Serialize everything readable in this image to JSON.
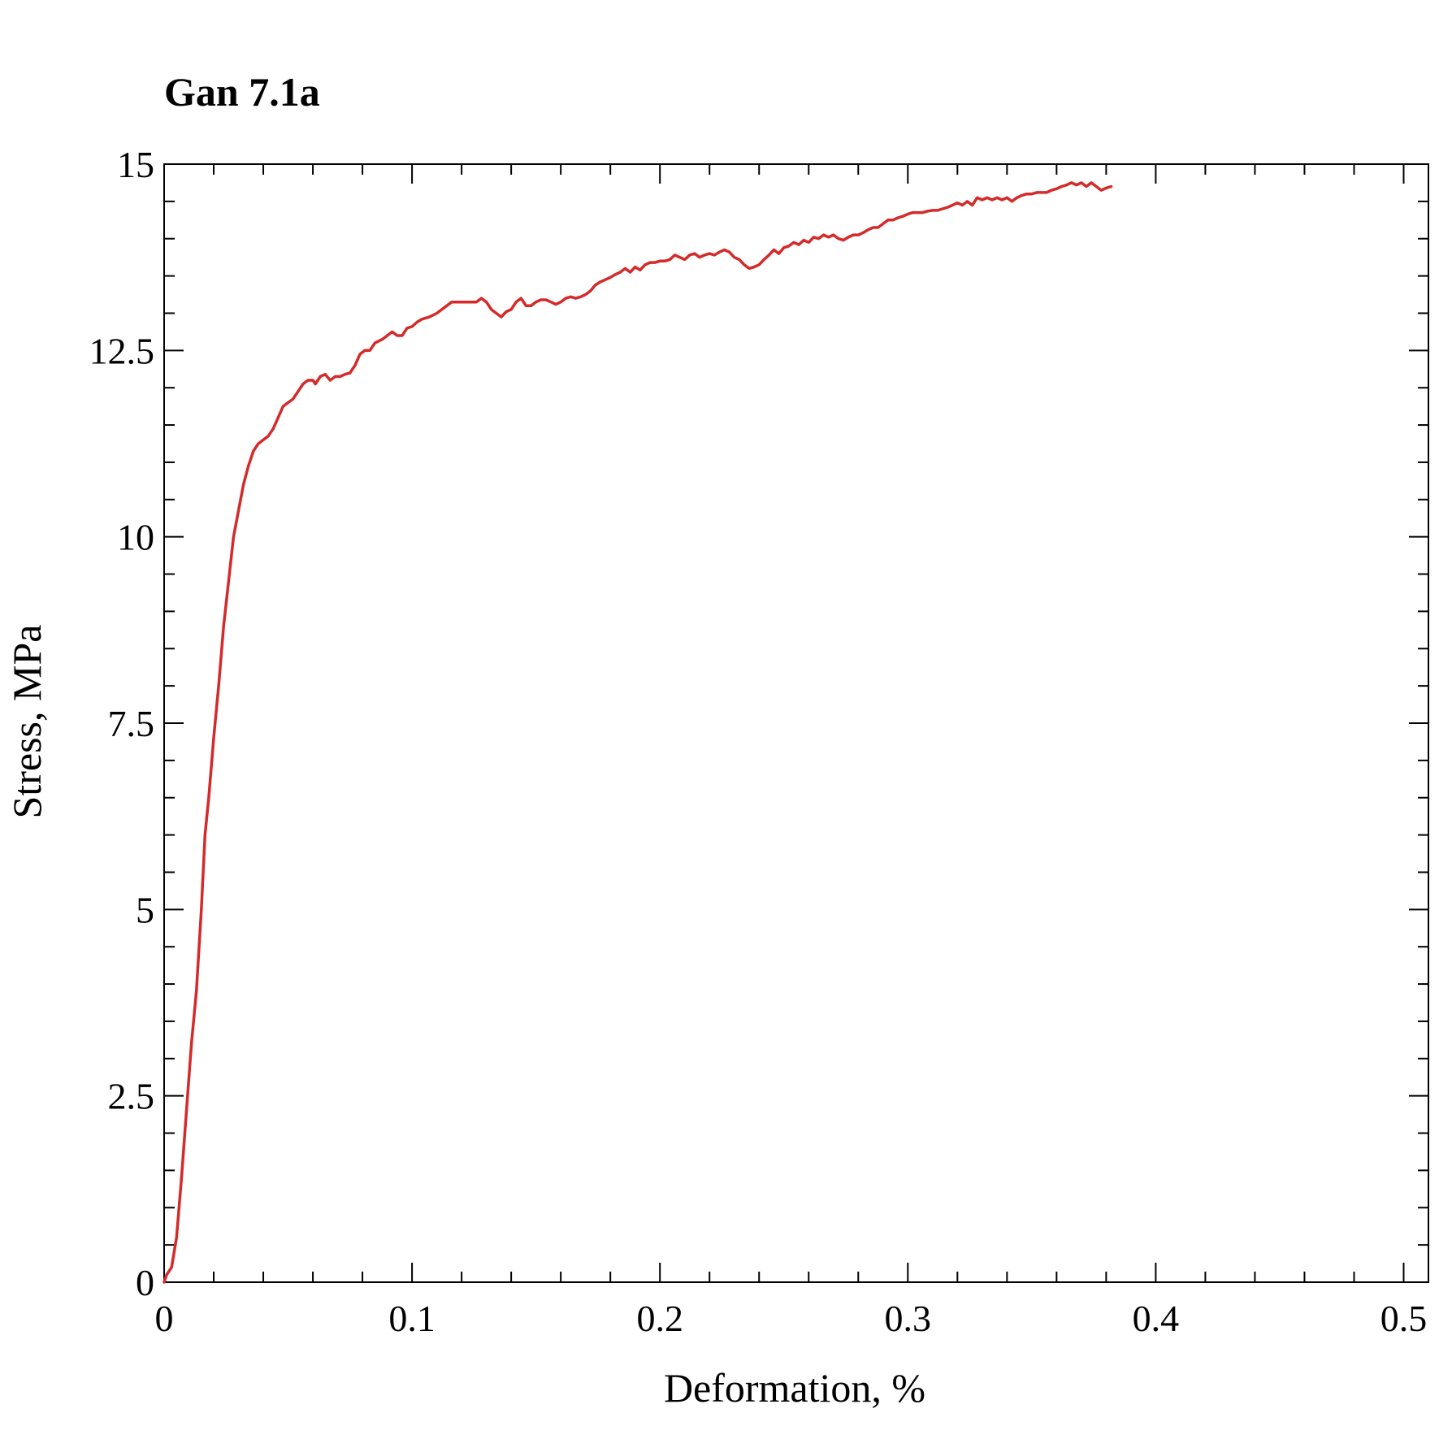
{
  "chart_data": {
    "type": "line",
    "title": "Gan 7.1a",
    "xlabel": "Deformation, %",
    "ylabel": "Stress, MPa",
    "xlim": [
      0,
      0.51
    ],
    "ylim": [
      0,
      15
    ],
    "x_ticks": [
      0,
      0.1,
      0.2,
      0.3,
      0.4,
      0.5
    ],
    "x_tick_labels": [
      "0",
      "0.1",
      "0.2",
      "0.3",
      "0.4",
      "0.5"
    ],
    "y_ticks": [
      0,
      2.5,
      5,
      7.5,
      10,
      12.5,
      15
    ],
    "y_tick_labels": [
      "0",
      "2.5",
      "5",
      "7.5",
      "10",
      "12.5",
      "15"
    ],
    "x_minor_step": 0.02,
    "y_minor_step": 0.5,
    "grid": false,
    "series": [
      {
        "name": "Gan 7.1a",
        "color": "#d42a2a",
        "points": [
          [
            0,
            0
          ],
          [
            0.001,
            0.1
          ],
          [
            0.003,
            0.2
          ],
          [
            0.005,
            0.6
          ],
          [
            0.007,
            1.4
          ],
          [
            0.009,
            2.3
          ],
          [
            0.011,
            3.2
          ],
          [
            0.013,
            3.9
          ],
          [
            0.015,
            5.0
          ],
          [
            0.0165,
            6.0
          ],
          [
            0.018,
            6.5
          ],
          [
            0.02,
            7.3
          ],
          [
            0.022,
            8.0
          ],
          [
            0.024,
            8.8
          ],
          [
            0.026,
            9.4
          ],
          [
            0.028,
            10.0
          ],
          [
            0.03,
            10.35
          ],
          [
            0.032,
            10.7
          ],
          [
            0.034,
            10.95
          ],
          [
            0.036,
            11.15
          ],
          [
            0.038,
            11.25
          ],
          [
            0.04,
            11.3
          ],
          [
            0.042,
            11.35
          ],
          [
            0.044,
            11.45
          ],
          [
            0.046,
            11.6
          ],
          [
            0.048,
            11.75
          ],
          [
            0.05,
            11.8
          ],
          [
            0.052,
            11.85
          ],
          [
            0.054,
            11.95
          ],
          [
            0.056,
            12.05
          ],
          [
            0.058,
            12.1
          ],
          [
            0.06,
            12.1
          ],
          [
            0.061,
            12.05
          ],
          [
            0.063,
            12.15
          ],
          [
            0.065,
            12.18
          ],
          [
            0.067,
            12.1
          ],
          [
            0.069,
            12.15
          ],
          [
            0.071,
            12.15
          ],
          [
            0.073,
            12.18
          ],
          [
            0.075,
            12.2
          ],
          [
            0.077,
            12.3
          ],
          [
            0.079,
            12.45
          ],
          [
            0.081,
            12.5
          ],
          [
            0.083,
            12.5
          ],
          [
            0.085,
            12.6
          ],
          [
            0.088,
            12.65
          ],
          [
            0.09,
            12.7
          ],
          [
            0.092,
            12.75
          ],
          [
            0.094,
            12.7
          ],
          [
            0.096,
            12.7
          ],
          [
            0.098,
            12.8
          ],
          [
            0.1,
            12.82
          ],
          [
            0.102,
            12.88
          ],
          [
            0.104,
            12.92
          ],
          [
            0.107,
            12.95
          ],
          [
            0.11,
            13.0
          ],
          [
            0.112,
            13.05
          ],
          [
            0.114,
            13.1
          ],
          [
            0.116,
            13.15
          ],
          [
            0.118,
            13.15
          ],
          [
            0.12,
            13.15
          ],
          [
            0.123,
            13.15
          ],
          [
            0.126,
            13.15
          ],
          [
            0.128,
            13.2
          ],
          [
            0.13,
            13.15
          ],
          [
            0.132,
            13.05
          ],
          [
            0.134,
            13.0
          ],
          [
            0.136,
            12.95
          ],
          [
            0.138,
            13.02
          ],
          [
            0.14,
            13.05
          ],
          [
            0.142,
            13.15
          ],
          [
            0.144,
            13.2
          ],
          [
            0.146,
            13.1
          ],
          [
            0.148,
            13.1
          ],
          [
            0.15,
            13.15
          ],
          [
            0.152,
            13.18
          ],
          [
            0.154,
            13.18
          ],
          [
            0.156,
            13.15
          ],
          [
            0.158,
            13.12
          ],
          [
            0.16,
            13.15
          ],
          [
            0.162,
            13.2
          ],
          [
            0.164,
            13.22
          ],
          [
            0.166,
            13.2
          ],
          [
            0.168,
            13.22
          ],
          [
            0.17,
            13.25
          ],
          [
            0.172,
            13.3
          ],
          [
            0.174,
            13.38
          ],
          [
            0.176,
            13.42
          ],
          [
            0.178,
            13.45
          ],
          [
            0.18,
            13.48
          ],
          [
            0.182,
            13.52
          ],
          [
            0.184,
            13.55
          ],
          [
            0.186,
            13.6
          ],
          [
            0.188,
            13.55
          ],
          [
            0.19,
            13.62
          ],
          [
            0.192,
            13.58
          ],
          [
            0.194,
            13.65
          ],
          [
            0.196,
            13.68
          ],
          [
            0.198,
            13.68
          ],
          [
            0.2,
            13.7
          ],
          [
            0.202,
            13.7
          ],
          [
            0.204,
            13.72
          ],
          [
            0.206,
            13.78
          ],
          [
            0.208,
            13.75
          ],
          [
            0.21,
            13.72
          ],
          [
            0.212,
            13.78
          ],
          [
            0.214,
            13.8
          ],
          [
            0.216,
            13.75
          ],
          [
            0.218,
            13.78
          ],
          [
            0.22,
            13.8
          ],
          [
            0.222,
            13.78
          ],
          [
            0.224,
            13.82
          ],
          [
            0.226,
            13.85
          ],
          [
            0.228,
            13.82
          ],
          [
            0.23,
            13.75
          ],
          [
            0.232,
            13.72
          ],
          [
            0.234,
            13.65
          ],
          [
            0.236,
            13.6
          ],
          [
            0.238,
            13.62
          ],
          [
            0.24,
            13.65
          ],
          [
            0.242,
            13.72
          ],
          [
            0.244,
            13.78
          ],
          [
            0.246,
            13.85
          ],
          [
            0.248,
            13.8
          ],
          [
            0.25,
            13.88
          ],
          [
            0.252,
            13.9
          ],
          [
            0.254,
            13.95
          ],
          [
            0.256,
            13.92
          ],
          [
            0.258,
            13.98
          ],
          [
            0.26,
            13.95
          ],
          [
            0.262,
            14.02
          ],
          [
            0.264,
            14.0
          ],
          [
            0.266,
            14.05
          ],
          [
            0.268,
            14.02
          ],
          [
            0.27,
            14.05
          ],
          [
            0.272,
            14.0
          ],
          [
            0.274,
            13.98
          ],
          [
            0.276,
            14.02
          ],
          [
            0.278,
            14.05
          ],
          [
            0.28,
            14.05
          ],
          [
            0.282,
            14.08
          ],
          [
            0.284,
            14.12
          ],
          [
            0.286,
            14.15
          ],
          [
            0.288,
            14.15
          ],
          [
            0.29,
            14.2
          ],
          [
            0.292,
            14.25
          ],
          [
            0.294,
            14.25
          ],
          [
            0.296,
            14.28
          ],
          [
            0.298,
            14.3
          ],
          [
            0.3,
            14.33
          ],
          [
            0.302,
            14.35
          ],
          [
            0.304,
            14.35
          ],
          [
            0.306,
            14.35
          ],
          [
            0.308,
            14.37
          ],
          [
            0.31,
            14.38
          ],
          [
            0.312,
            14.38
          ],
          [
            0.314,
            14.4
          ],
          [
            0.316,
            14.42
          ],
          [
            0.318,
            14.45
          ],
          [
            0.32,
            14.48
          ],
          [
            0.322,
            14.45
          ],
          [
            0.324,
            14.5
          ],
          [
            0.326,
            14.45
          ],
          [
            0.328,
            14.55
          ],
          [
            0.33,
            14.52
          ],
          [
            0.332,
            14.55
          ],
          [
            0.334,
            14.52
          ],
          [
            0.336,
            14.55
          ],
          [
            0.338,
            14.52
          ],
          [
            0.34,
            14.55
          ],
          [
            0.342,
            14.5
          ],
          [
            0.344,
            14.55
          ],
          [
            0.346,
            14.58
          ],
          [
            0.348,
            14.6
          ],
          [
            0.35,
            14.6
          ],
          [
            0.352,
            14.62
          ],
          [
            0.354,
            14.62
          ],
          [
            0.356,
            14.62
          ],
          [
            0.358,
            14.65
          ],
          [
            0.36,
            14.67
          ],
          [
            0.362,
            14.7
          ],
          [
            0.364,
            14.72
          ],
          [
            0.366,
            14.75
          ],
          [
            0.368,
            14.72
          ],
          [
            0.37,
            14.75
          ],
          [
            0.372,
            14.7
          ],
          [
            0.374,
            14.75
          ],
          [
            0.376,
            14.7
          ],
          [
            0.378,
            14.65
          ],
          [
            0.38,
            14.68
          ],
          [
            0.382,
            14.7
          ]
        ]
      }
    ]
  }
}
